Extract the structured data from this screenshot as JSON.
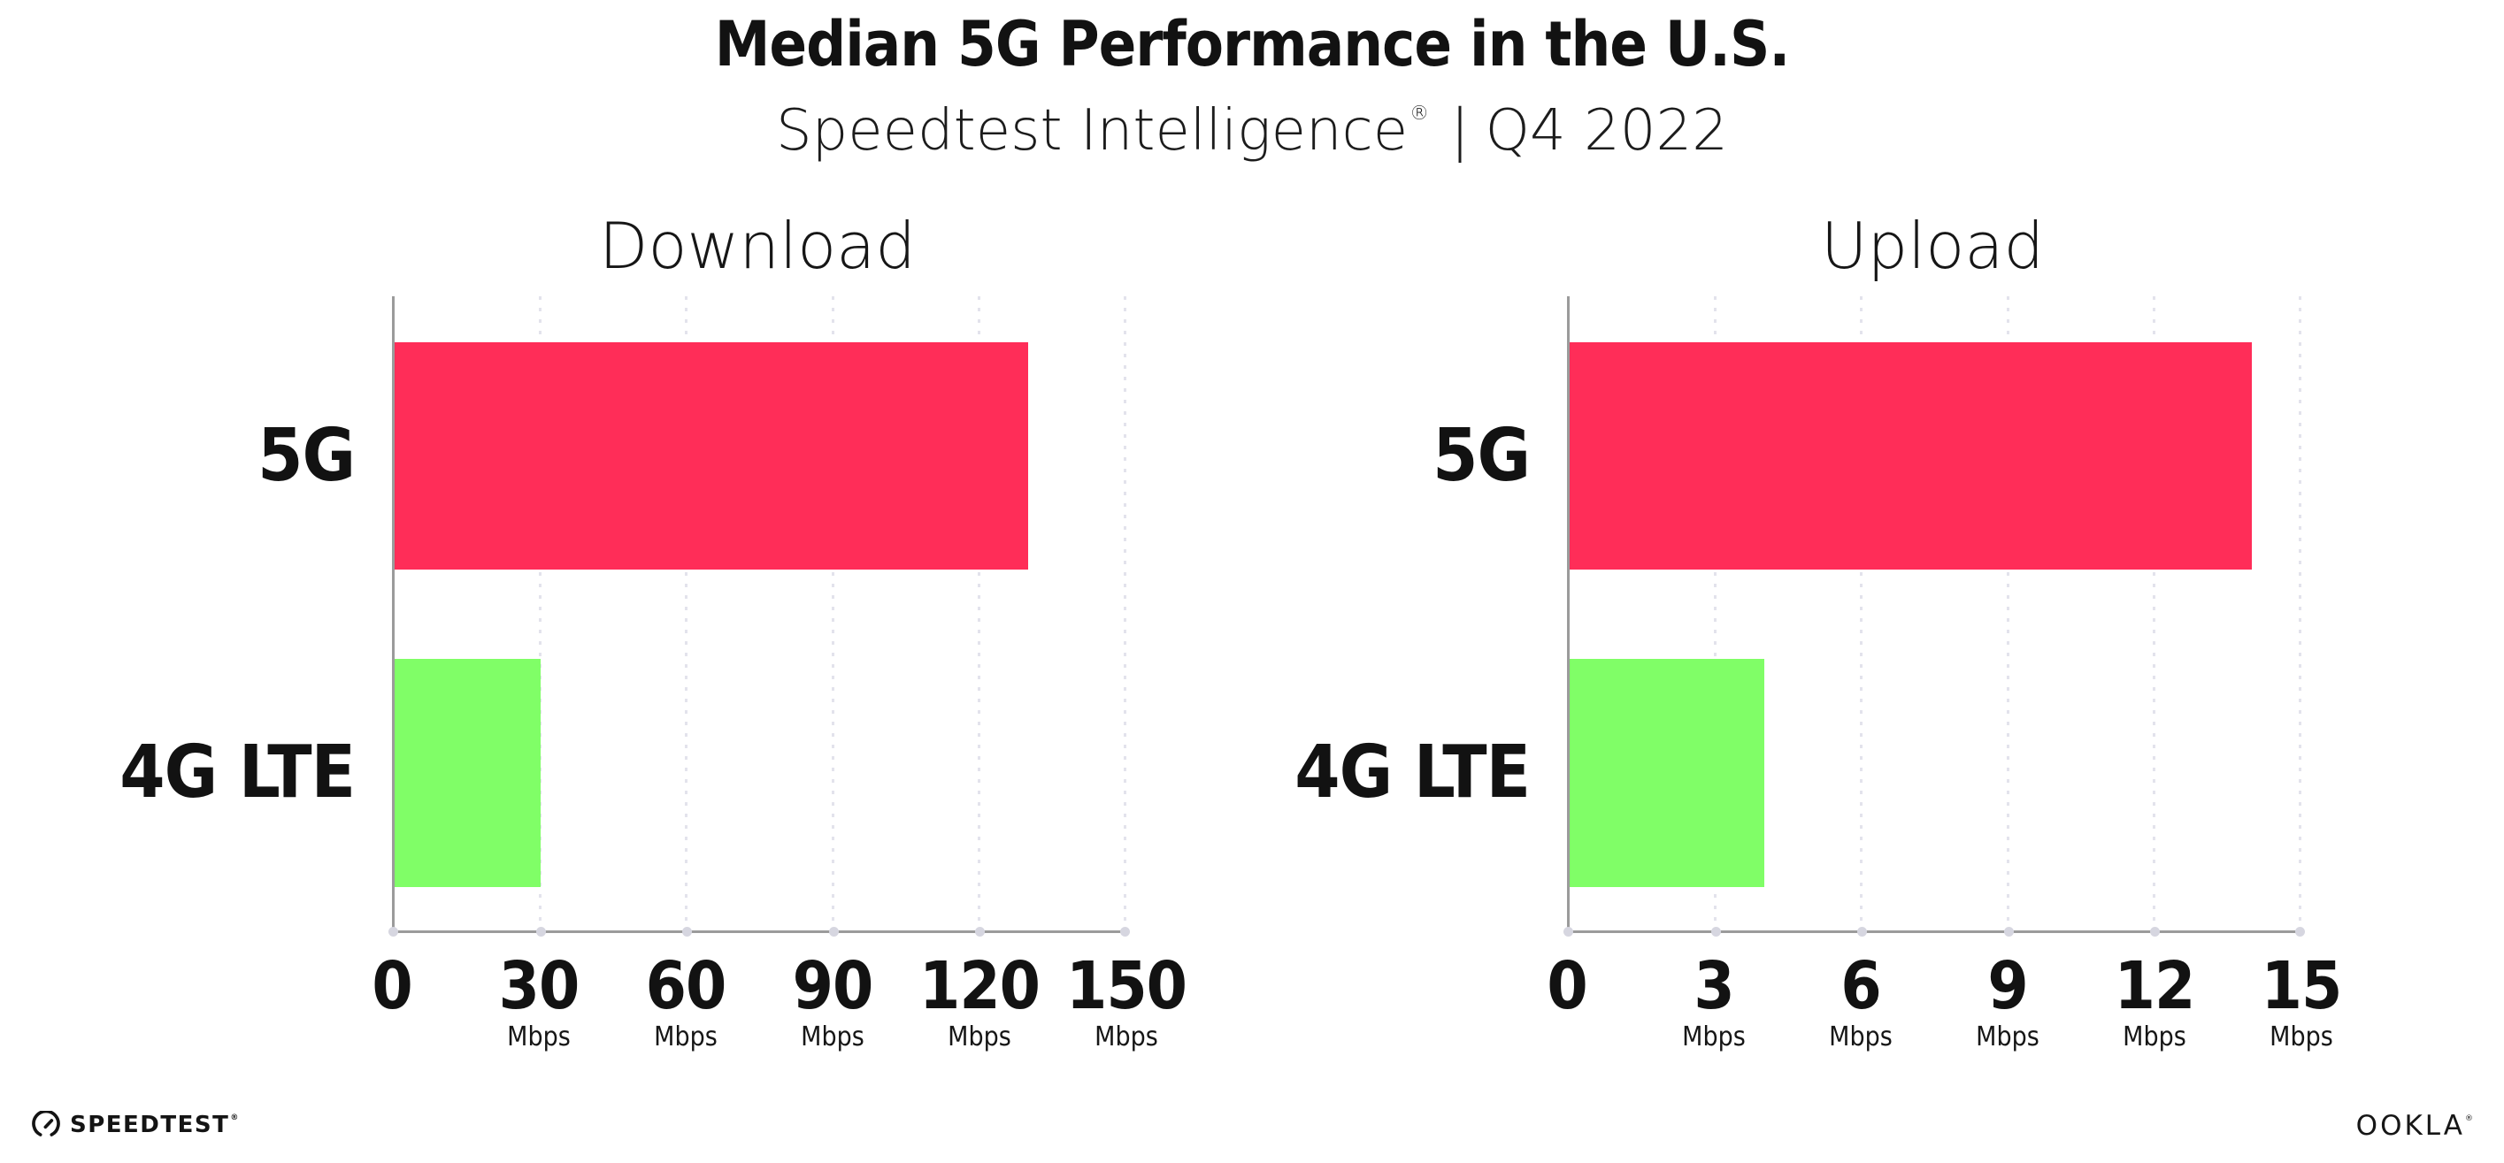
{
  "page": {
    "title": "Median 5G Performance in the U.S.",
    "subtitle": {
      "brand": "Speedtest Intelligence",
      "registered_mark": "®",
      "separator": "|",
      "period": "Q4 2022"
    }
  },
  "chart_data": [
    {
      "type": "bar",
      "orientation": "horizontal",
      "title": "Download",
      "categories": [
        "5G",
        "4G LTE"
      ],
      "values": [
        130,
        30
      ],
      "unit": "Mbps",
      "xlim": [
        0,
        150
      ],
      "xticks": [
        0,
        30,
        60,
        90,
        120,
        150
      ],
      "grid": "dotted-vertical",
      "legend": "none",
      "bar_colors": [
        "#FF2D58",
        "#80FE67"
      ]
    },
    {
      "type": "bar",
      "orientation": "horizontal",
      "title": "Upload",
      "categories": [
        "5G",
        "4G LTE"
      ],
      "values": [
        14,
        4
      ],
      "unit": "Mbps",
      "xlim": [
        0,
        15
      ],
      "xticks": [
        0,
        3,
        6,
        9,
        12,
        15
      ],
      "grid": "dotted-vertical",
      "legend": "none",
      "bar_colors": [
        "#FF2D58",
        "#80FE67"
      ]
    }
  ],
  "footer": {
    "speedtest_label": "SPEEDTEST",
    "speedtest_mark": "®",
    "ookla_label": "OOKLA",
    "ookla_mark": "®"
  },
  "colors": {
    "bar_5g": "#FF2D58",
    "bar_4g_lte": "#80FE67",
    "axis": "#9B9B9B",
    "grid_dot": "#E3E3EC",
    "tick_dot": "#D6D6E0",
    "text": "#121212",
    "background": "#FFFFFF"
  }
}
